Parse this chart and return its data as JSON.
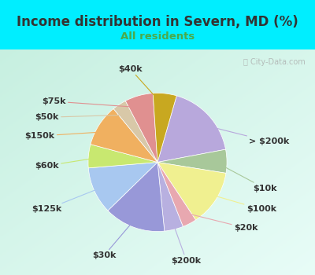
{
  "title": "Income distribution in Severn, MD (%)",
  "subtitle": "All residents",
  "title_color": "#333333",
  "subtitle_color": "#4aaa4a",
  "bg_cyan": "#00eeff",
  "watermark": "City-Data.com",
  "slices": [
    {
      "label": "> $200k",
      "value": 16,
      "color": "#b8a8dc"
    },
    {
      "label": "$10k",
      "value": 5,
      "color": "#a8c89a"
    },
    {
      "label": "$100k",
      "value": 12,
      "color": "#f0f090"
    },
    {
      "label": "$20k",
      "value": 3,
      "color": "#e8a8b0"
    },
    {
      "label": "$200k",
      "value": 4,
      "color": "#b8b0e0"
    },
    {
      "label": "$30k",
      "value": 13,
      "color": "#9898d8"
    },
    {
      "label": "$125k",
      "value": 10,
      "color": "#a8c8f0"
    },
    {
      "label": "$60k",
      "value": 5,
      "color": "#c8e870"
    },
    {
      "label": "$150k",
      "value": 9,
      "color": "#f0b060"
    },
    {
      "label": "$50k",
      "value": 3,
      "color": "#d8c8a8"
    },
    {
      "label": "$75k",
      "value": 6,
      "color": "#e09090"
    },
    {
      "label": "$40k",
      "value": 5,
      "color": "#c8a820"
    }
  ],
  "label_fontsize": 8,
  "title_fontsize": 12,
  "subtitle_fontsize": 9.5,
  "startangle": 74
}
